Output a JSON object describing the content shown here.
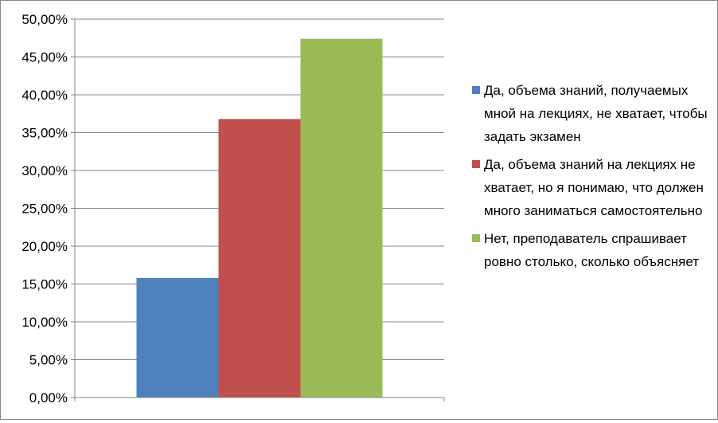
{
  "chart_data": {
    "type": "bar",
    "categories": [
      ""
    ],
    "series": [
      {
        "name": "Да, объема знаний, получаемых мной на лекциях, не хватает, чтобы задать экзамен",
        "values": [
          15.8
        ],
        "color": "#4F81BD"
      },
      {
        "name": "Да, объема знаний на лекциях не хватает, но я понимаю, что должен много заниматься самостоятельно",
        "values": [
          36.8
        ],
        "color": "#C0504D"
      },
      {
        "name": "Нет, преподаватель спрашивает ровно столько, сколько объясняет",
        "values": [
          47.4
        ],
        "color": "#9BBB59"
      }
    ],
    "ylim": [
      0,
      50
    ],
    "yticks": [
      "0,00%",
      "5,00%",
      "10,00%",
      "15,00%",
      "20,00%",
      "25,00%",
      "30,00%",
      "35,00%",
      "40,00%",
      "45,00%",
      "50,00%"
    ],
    "grid": true,
    "legend_position": "right"
  }
}
